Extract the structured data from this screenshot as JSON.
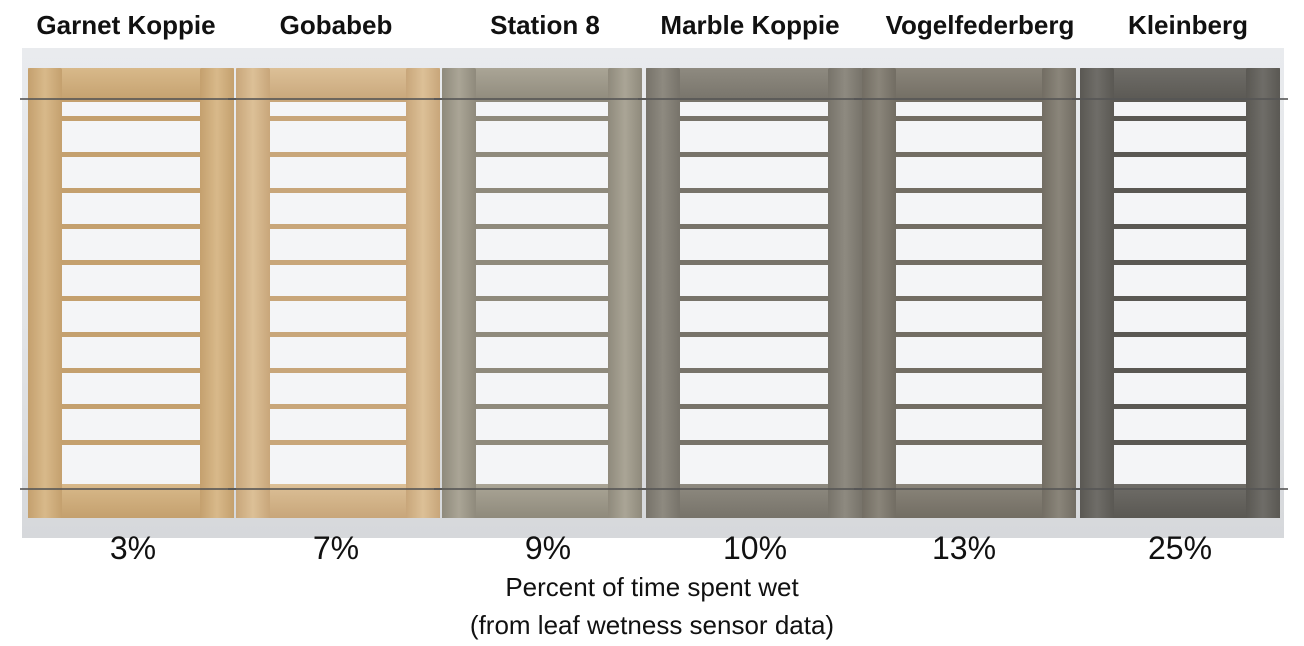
{
  "sites": [
    {
      "name": "Garnet Koppie",
      "percent": "3%",
      "tone": "#d8b98a",
      "edge": "#c4a06e"
    },
    {
      "name": "Gobabeb",
      "percent": "7%",
      "tone": "#dcc097",
      "edge": "#c8a67a"
    },
    {
      "name": "Station 8",
      "percent": "9%",
      "tone": "#aaa596",
      "edge": "#8f8a7c"
    },
    {
      "name": "Marble Koppie",
      "percent": "10%",
      "tone": "#8e8a80",
      "edge": "#77736a"
    },
    {
      "name": "Vogelfederberg",
      "percent": "13%",
      "tone": "#8a857a",
      "edge": "#726d63"
    },
    {
      "name": "Kleinberg",
      "percent": "25%",
      "tone": "#6f6d68",
      "edge": "#5a5853"
    }
  ],
  "caption": {
    "line1": "Percent of time spent wet",
    "line2": "(from leaf wetness sensor data)"
  }
}
